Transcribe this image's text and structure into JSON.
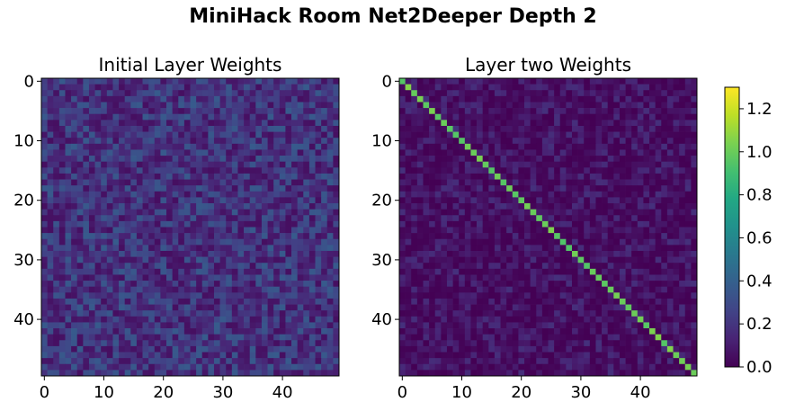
{
  "suptitle": "MiniHack Room Net2Deeper Depth 2",
  "chart_data": [
    {
      "type": "heatmap",
      "title": "Initial Layer Weights",
      "rows": 50,
      "cols": 50,
      "xticks": [
        0,
        10,
        20,
        30,
        40
      ],
      "yticks": [
        0,
        10,
        20,
        30,
        40
      ],
      "value_range": [
        0.0,
        0.45
      ],
      "pattern": "uniform random weights, mostly 0.05–0.35"
    },
    {
      "type": "heatmap",
      "title": "Layer two Weights",
      "rows": 50,
      "cols": 50,
      "xticks": [
        0,
        10,
        20,
        30,
        40
      ],
      "yticks": [
        0,
        10,
        20,
        30,
        40
      ],
      "diagonal_value": 1.0,
      "off_diagonal_range": [
        0.0,
        0.2
      ],
      "pattern": "identity-like: bright diagonal, near-zero elsewhere"
    }
  ],
  "colorbar": {
    "colormap": "viridis",
    "min": 0.0,
    "max": 1.3,
    "ticks": [
      "0.0",
      "0.2",
      "0.4",
      "0.6",
      "0.8",
      "1.0",
      "1.2"
    ]
  }
}
